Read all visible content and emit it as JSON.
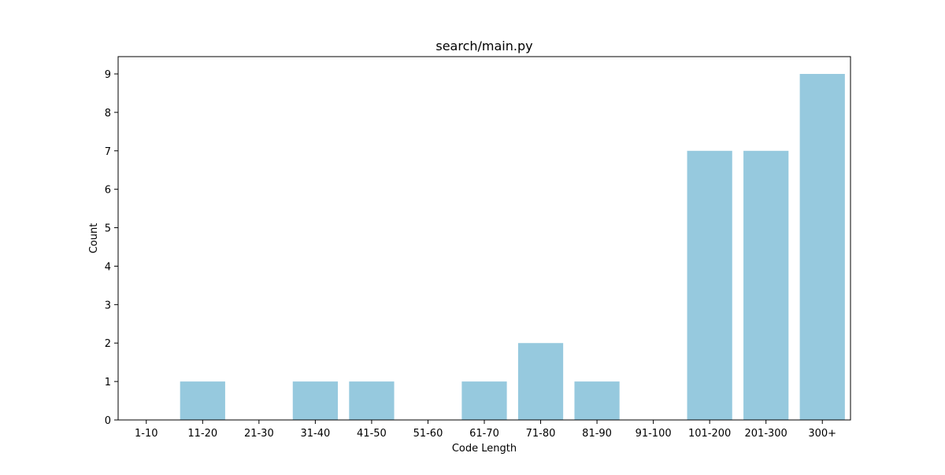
{
  "chart_data": {
    "type": "bar",
    "title": "search/main.py",
    "xlabel": "Code Length",
    "ylabel": "Count",
    "categories": [
      "1-10",
      "11-20",
      "21-30",
      "31-40",
      "41-50",
      "51-60",
      "61-70",
      "71-80",
      "81-90",
      "91-100",
      "101-200",
      "201-300",
      "300+"
    ],
    "values": [
      0,
      1,
      0,
      1,
      1,
      0,
      1,
      2,
      1,
      0,
      7,
      7,
      9
    ],
    "ylim": [
      0,
      9.45
    ],
    "yticks": [
      "0",
      "1",
      "2",
      "3",
      "4",
      "5",
      "6",
      "7",
      "8",
      "9"
    ],
    "grid": false,
    "bar_color": "#96c9de"
  }
}
